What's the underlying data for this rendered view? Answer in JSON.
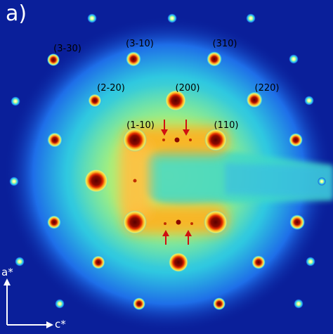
{
  "panel_label": "a)",
  "reflection_labels": [
    "(3-30)",
    "(3-10)",
    "(310)",
    "(2-20)",
    "(200)",
    "(220)",
    "(1-10)",
    "(110)"
  ],
  "axes": {
    "vertical": "a*",
    "horizontal": "c*"
  },
  "colors": {
    "background": "#0a1f9a",
    "diffuse_halo": "#38e0c8",
    "diffuse_core": "#ffb020",
    "spot_core": "#7a0000",
    "arrow": "#d01010",
    "axis": "#ffffff",
    "label_text": "#000000"
  }
}
